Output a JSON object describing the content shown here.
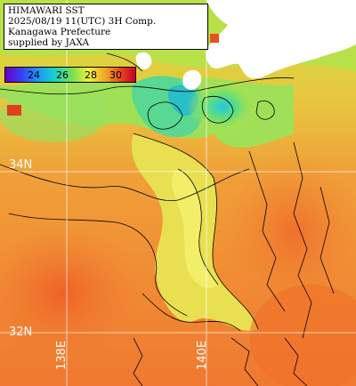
{
  "map": {
    "title_lines": [
      "HIMAWARI SST",
      "2025/08/19 11(UTC) 3H Comp.",
      "Kanagawa Prefecture",
      "supplied by JAXA"
    ],
    "colorbar": {
      "tick_labels": [
        "24",
        "26",
        "28",
        "30"
      ],
      "colors": [
        "#6a00c8",
        "#1e90ff",
        "#7ee050",
        "#f0f03c",
        "#f0a028",
        "#c80028"
      ]
    },
    "gridlines": {
      "latitude_labels": [
        "34N",
        "32N"
      ],
      "longitude_labels": [
        "138E",
        "140E"
      ]
    },
    "land_color": "#ffffff",
    "ocean_warm_color": "#f08a30",
    "ocean_cool_color": "#2ed0c0"
  }
}
